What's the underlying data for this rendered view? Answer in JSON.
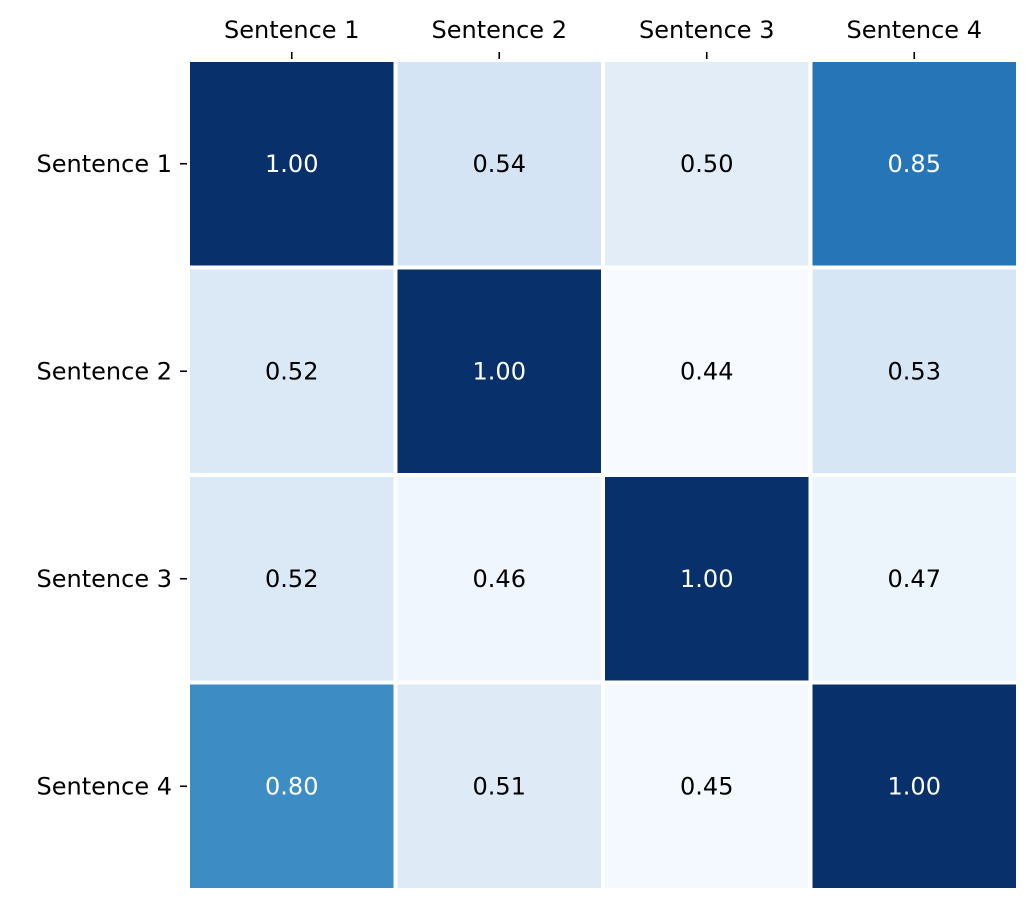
{
  "chart_data": {
    "type": "heatmap",
    "title": "",
    "xlabel": "",
    "ylabel": "",
    "x_categories": [
      "Sentence 1",
      "Sentence 2",
      "Sentence 3",
      "Sentence 4"
    ],
    "y_categories": [
      "Sentence 1",
      "Sentence 2",
      "Sentence 3",
      "Sentence 4"
    ],
    "x_tick_position": "top",
    "colormap": "Blues",
    "vmin": 0.44,
    "vmax": 1.0,
    "grid": false,
    "colorbar": false,
    "values": [
      [
        1.0,
        0.54,
        0.5,
        0.85
      ],
      [
        0.52,
        1.0,
        0.44,
        0.53
      ],
      [
        0.52,
        0.46,
        1.0,
        0.47
      ],
      [
        0.8,
        0.51,
        0.45,
        1.0
      ]
    ],
    "value_format": "0.00"
  },
  "colors": {
    "low": "#f7fbff",
    "high": "#08306b",
    "cell_border": "#ffffff",
    "label_dark": "#000000",
    "label_light": "#ffffff"
  }
}
